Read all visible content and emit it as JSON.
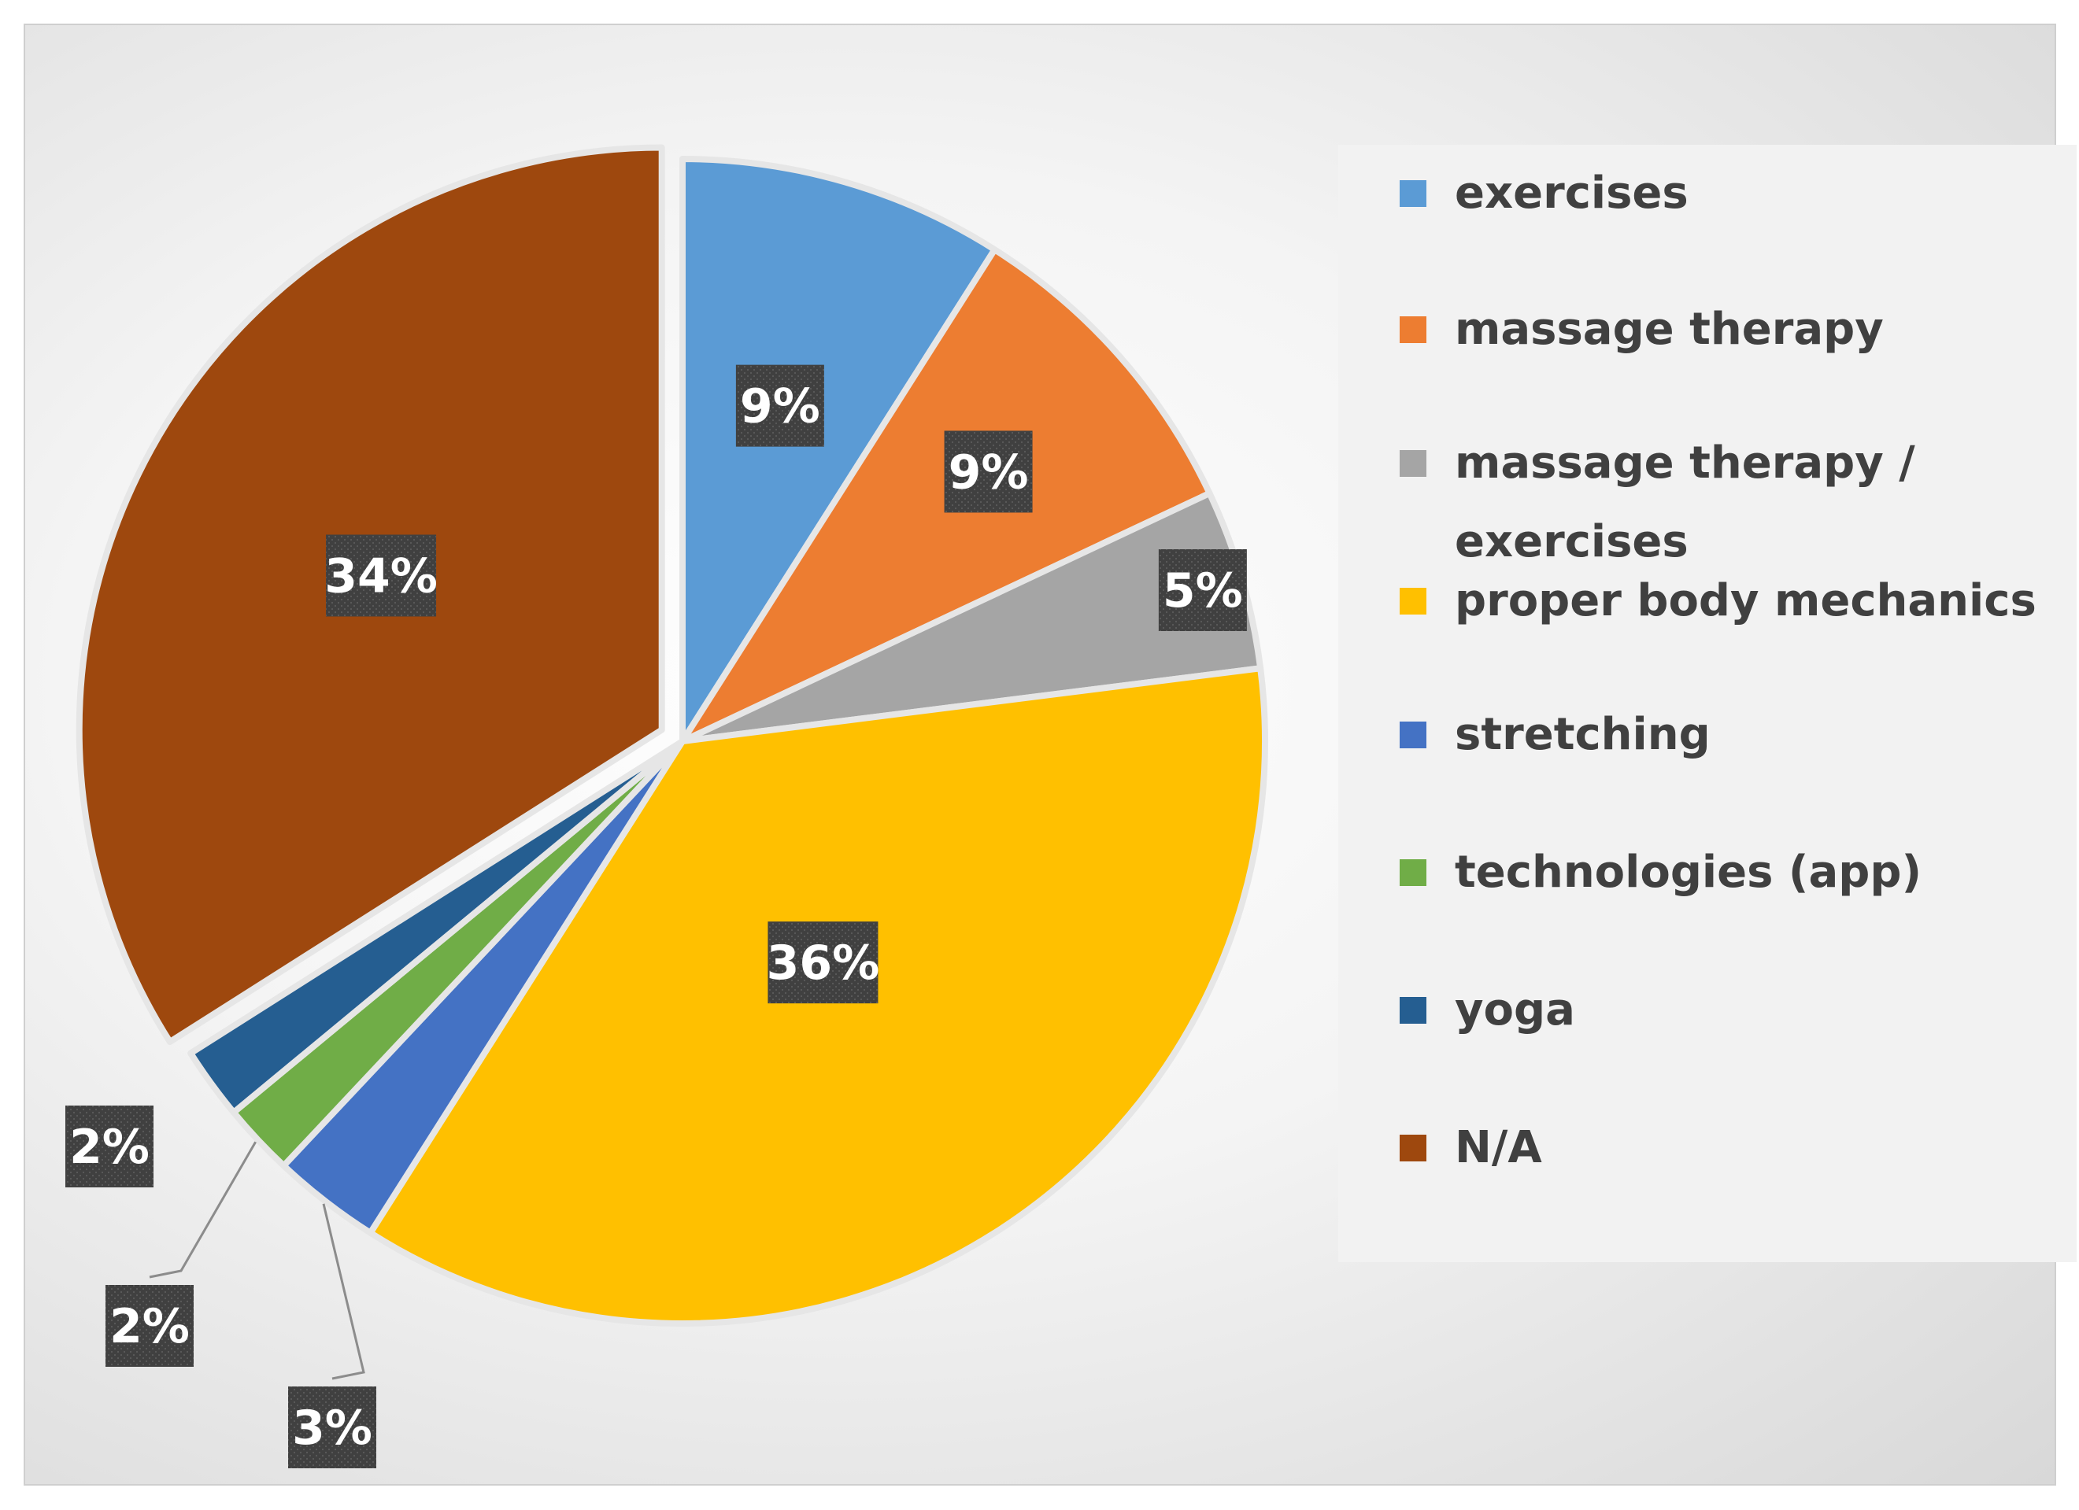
{
  "chart_data": {
    "type": "pie",
    "title": "",
    "legend_position": "right",
    "slices": [
      {
        "label": "exercises",
        "value": 9,
        "display": "9%",
        "color": "#5B9BD5"
      },
      {
        "label": "massage therapy",
        "value": 9,
        "display": "9%",
        "color": "#ED7D31"
      },
      {
        "label": "massage therapy / exercises",
        "label_lines": [
          "massage therapy /",
          "exercises"
        ],
        "value": 5,
        "display": "5%",
        "color": "#A5A5A5"
      },
      {
        "label": "proper body mechanics",
        "value": 36,
        "display": "36%",
        "color": "#FFC000"
      },
      {
        "label": "stretching",
        "value": 3,
        "display": "3%",
        "color": "#4472C4"
      },
      {
        "label": "technologies (app)",
        "value": 2,
        "display": "2%",
        "color": "#70AD47"
      },
      {
        "label": "yoga",
        "value": 2,
        "display": "2%",
        "color": "#255E91"
      },
      {
        "label": "N/A",
        "value": 34,
        "display": "34%",
        "color": "#9E480E"
      }
    ]
  }
}
